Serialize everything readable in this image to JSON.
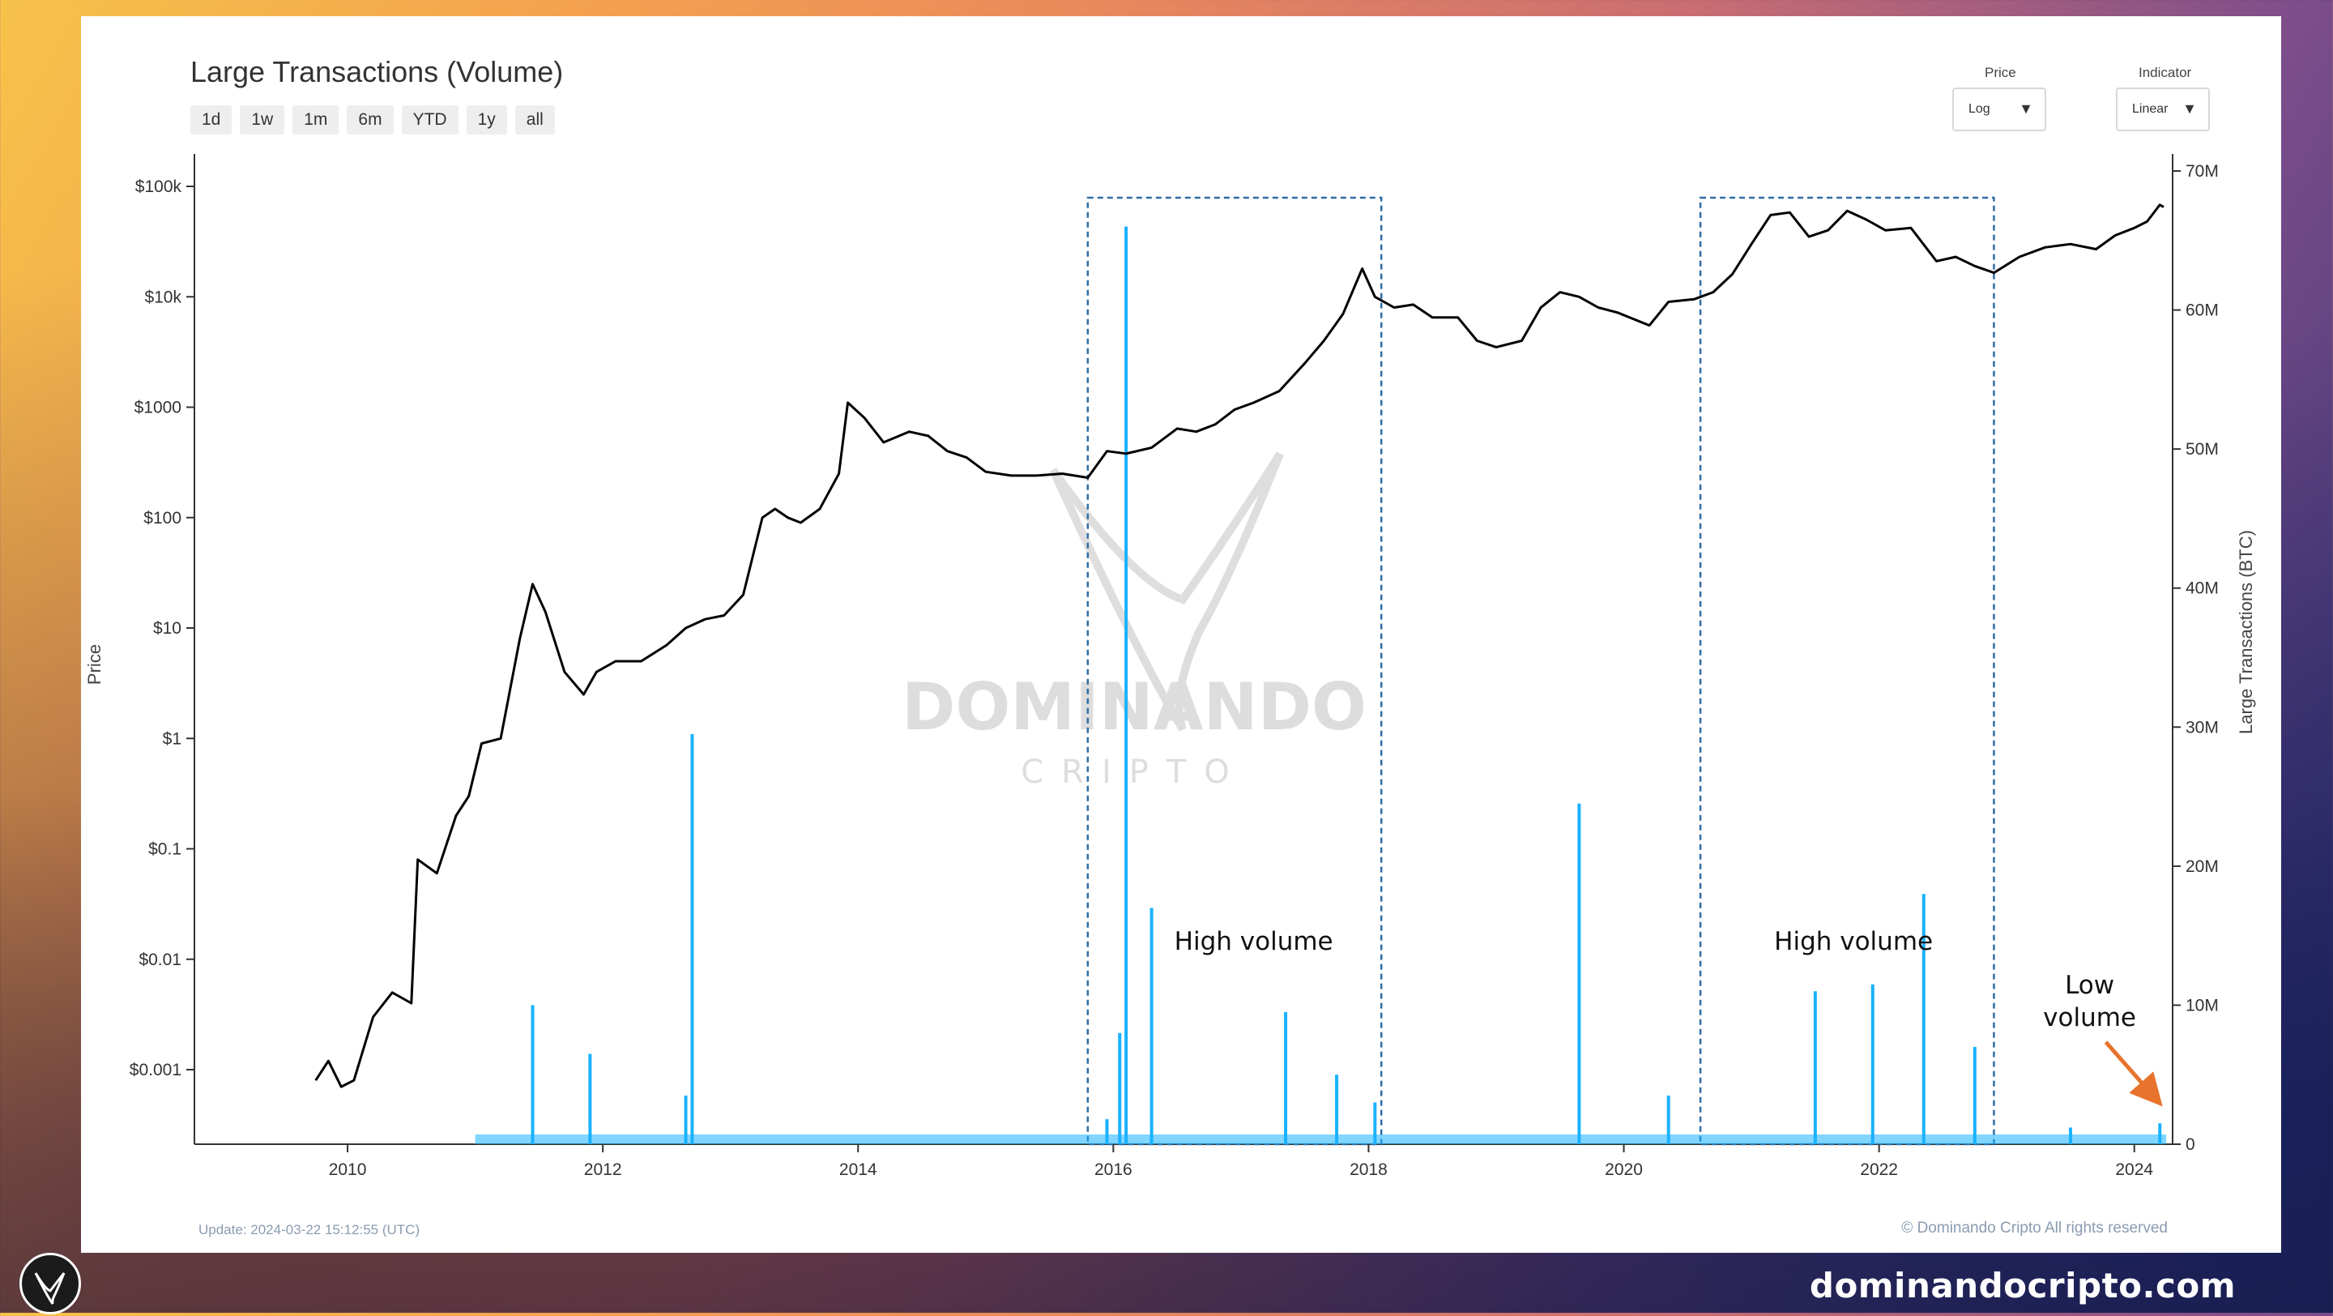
{
  "chart_data": {
    "type": "line+bar",
    "title": "Large Transactions (Volume)",
    "range_buttons": [
      "1d",
      "1w",
      "1m",
      "6m",
      "YTD",
      "1y",
      "all"
    ],
    "controls": {
      "price_label": "Price",
      "price_value": "Log",
      "indicator_label": "Indicator",
      "indicator_value": "Linear"
    },
    "left_axis": {
      "label": "Price",
      "scale": "log",
      "ticks": [
        {
          "value": 0.001,
          "label": "$0.001"
        },
        {
          "value": 0.01,
          "label": "$0.01"
        },
        {
          "value": 0.1,
          "label": "$0.1"
        },
        {
          "value": 1,
          "label": "$1"
        },
        {
          "value": 10,
          "label": "$10"
        },
        {
          "value": 100,
          "label": "$100"
        },
        {
          "value": 1000,
          "label": "$1000"
        },
        {
          "value": 10000,
          "label": "$10k"
        },
        {
          "value": 100000,
          "label": "$100k"
        }
      ]
    },
    "right_axis": {
      "label": "Large Transactions (BTC)",
      "scale": "linear",
      "range": [
        0,
        70000000
      ],
      "ticks": [
        {
          "value": 0,
          "label": "0"
        },
        {
          "value": 10000000,
          "label": "10M"
        },
        {
          "value": 20000000,
          "label": "20M"
        },
        {
          "value": 30000000,
          "label": "30M"
        },
        {
          "value": 40000000,
          "label": "40M"
        },
        {
          "value": 50000000,
          "label": "50M"
        },
        {
          "value": 60000000,
          "label": "60M"
        },
        {
          "value": 70000000,
          "label": "70M"
        }
      ]
    },
    "x_axis": {
      "range": [
        2008.8,
        2024.3
      ],
      "ticks": [
        {
          "value": 2010,
          "label": "2010"
        },
        {
          "value": 2012,
          "label": "2012"
        },
        {
          "value": 2014,
          "label": "2014"
        },
        {
          "value": 2016,
          "label": "2016"
        },
        {
          "value": 2018,
          "label": "2018"
        },
        {
          "value": 2020,
          "label": "2020"
        },
        {
          "value": 2022,
          "label": "2022"
        },
        {
          "value": 2024,
          "label": "2024"
        }
      ]
    },
    "price_series": [
      [
        2009.75,
        0.0008
      ],
      [
        2009.85,
        0.0012
      ],
      [
        2009.95,
        0.0007
      ],
      [
        2010.05,
        0.0008
      ],
      [
        2010.2,
        0.003
      ],
      [
        2010.35,
        0.005
      ],
      [
        2010.5,
        0.004
      ],
      [
        2010.55,
        0.08
      ],
      [
        2010.7,
        0.06
      ],
      [
        2010.85,
        0.2
      ],
      [
        2010.95,
        0.3
      ],
      [
        2011.05,
        0.9
      ],
      [
        2011.2,
        1.0
      ],
      [
        2011.35,
        8
      ],
      [
        2011.45,
        25
      ],
      [
        2011.55,
        14
      ],
      [
        2011.7,
        4
      ],
      [
        2011.85,
        2.5
      ],
      [
        2011.95,
        4
      ],
      [
        2012.1,
        5
      ],
      [
        2012.3,
        5
      ],
      [
        2012.5,
        7
      ],
      [
        2012.65,
        10
      ],
      [
        2012.8,
        12
      ],
      [
        2012.95,
        13
      ],
      [
        2013.1,
        20
      ],
      [
        2013.25,
        100
      ],
      [
        2013.35,
        120
      ],
      [
        2013.45,
        100
      ],
      [
        2013.55,
        90
      ],
      [
        2013.7,
        120
      ],
      [
        2013.85,
        250
      ],
      [
        2013.92,
        1100
      ],
      [
        2014.05,
        800
      ],
      [
        2014.2,
        480
      ],
      [
        2014.4,
        600
      ],
      [
        2014.55,
        550
      ],
      [
        2014.7,
        400
      ],
      [
        2014.85,
        350
      ],
      [
        2015.0,
        260
      ],
      [
        2015.2,
        240
      ],
      [
        2015.4,
        240
      ],
      [
        2015.6,
        250
      ],
      [
        2015.8,
        230
      ],
      [
        2015.95,
        400
      ],
      [
        2016.1,
        380
      ],
      [
        2016.3,
        430
      ],
      [
        2016.5,
        640
      ],
      [
        2016.65,
        600
      ],
      [
        2016.8,
        700
      ],
      [
        2016.95,
        950
      ],
      [
        2017.1,
        1100
      ],
      [
        2017.3,
        1400
      ],
      [
        2017.5,
        2500
      ],
      [
        2017.65,
        4000
      ],
      [
        2017.8,
        7000
      ],
      [
        2017.95,
        18000
      ],
      [
        2018.05,
        10000
      ],
      [
        2018.2,
        8000
      ],
      [
        2018.35,
        8500
      ],
      [
        2018.5,
        6500
      ],
      [
        2018.7,
        6500
      ],
      [
        2018.85,
        4000
      ],
      [
        2019.0,
        3500
      ],
      [
        2019.2,
        4000
      ],
      [
        2019.35,
        8000
      ],
      [
        2019.5,
        11000
      ],
      [
        2019.65,
        10000
      ],
      [
        2019.8,
        8000
      ],
      [
        2019.95,
        7200
      ],
      [
        2020.2,
        5500
      ],
      [
        2020.35,
        9000
      ],
      [
        2020.55,
        9500
      ],
      [
        2020.7,
        11000
      ],
      [
        2020.85,
        16000
      ],
      [
        2021.0,
        30000
      ],
      [
        2021.15,
        55000
      ],
      [
        2021.3,
        58000
      ],
      [
        2021.45,
        35000
      ],
      [
        2021.6,
        40000
      ],
      [
        2021.75,
        60000
      ],
      [
        2021.9,
        50000
      ],
      [
        2022.05,
        40000
      ],
      [
        2022.25,
        42000
      ],
      [
        2022.45,
        21000
      ],
      [
        2022.6,
        23000
      ],
      [
        2022.75,
        19000
      ],
      [
        2022.9,
        16500
      ],
      [
        2023.1,
        23000
      ],
      [
        2023.3,
        28000
      ],
      [
        2023.5,
        30000
      ],
      [
        2023.7,
        27000
      ],
      [
        2023.85,
        36000
      ],
      [
        2024.0,
        42000
      ],
      [
        2024.1,
        48000
      ],
      [
        2024.2,
        68000
      ],
      [
        2024.23,
        65000
      ]
    ],
    "volume_series": [
      [
        2011.45,
        10000000
      ],
      [
        2011.9,
        6500000
      ],
      [
        2012.65,
        3500000
      ],
      [
        2012.7,
        29500000
      ],
      [
        2015.95,
        1800000
      ],
      [
        2016.05,
        8000000
      ],
      [
        2016.1,
        66000000
      ],
      [
        2016.3,
        17000000
      ],
      [
        2017.35,
        9500000
      ],
      [
        2017.75,
        5000000
      ],
      [
        2018.05,
        3000000
      ],
      [
        2019.65,
        24500000
      ],
      [
        2020.35,
        3500000
      ],
      [
        2021.5,
        11000000
      ],
      [
        2021.95,
        11500000
      ],
      [
        2022.35,
        18000000
      ],
      [
        2022.75,
        7000000
      ],
      [
        2023.5,
        1200000
      ],
      [
        2024.2,
        1500000
      ]
    ],
    "annotations": [
      {
        "text": "High volume",
        "x": 2017.1
      },
      {
        "text": "High volume",
        "x": 2021.8
      },
      {
        "text_line1": "Low",
        "text_line2": "volume",
        "x": 2023.65
      }
    ],
    "highlight_regions": [
      [
        2015.8,
        2018.1
      ],
      [
        2020.6,
        2022.9
      ]
    ]
  },
  "footer": {
    "update": "Update: 2024-03-22 15:12:55 (UTC)",
    "copyright": "© Dominando Cripto All rights reserved"
  },
  "watermark": {
    "line1": "DOMINANDO",
    "line2": "CRIPTO"
  },
  "site_url": "dominandocripto.com",
  "colors": {
    "price": "#000000",
    "volume": "#1ab2ff",
    "highlight": "#2e6da4",
    "arrow": "#e8732c"
  }
}
